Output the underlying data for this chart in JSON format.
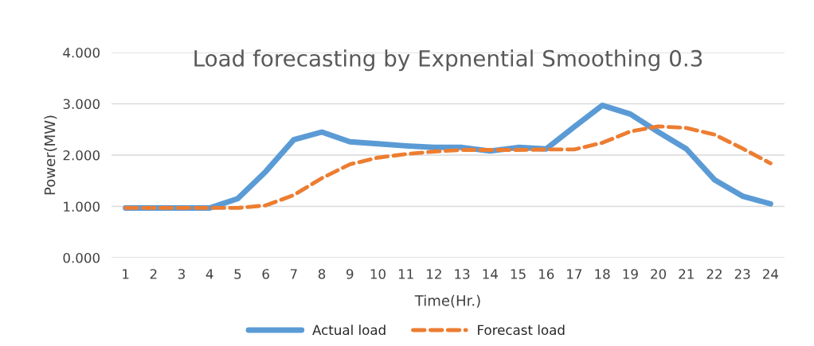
{
  "chart_data": {
    "type": "line",
    "title": "Load forecasting by Expnential Smoothing 0.3",
    "xlabel": "Time(Hr.)",
    "ylabel": "Power(MW)",
    "categories": [
      "1",
      "2",
      "3",
      "4",
      "5",
      "6",
      "7",
      "8",
      "9",
      "10",
      "11",
      "12",
      "13",
      "14",
      "15",
      "16",
      "17",
      "18",
      "19",
      "20",
      "21",
      "22",
      "23",
      "24"
    ],
    "series": [
      {
        "name": "Actual load",
        "color": "#5b9bd5",
        "line_style": "solid",
        "values": [
          0.97,
          0.97,
          0.97,
          0.97,
          1.15,
          1.68,
          2.3,
          2.45,
          2.26,
          2.22,
          2.18,
          2.15,
          2.15,
          2.08,
          2.15,
          2.12,
          2.55,
          2.97,
          2.8,
          2.45,
          2.12,
          1.52,
          1.2,
          1.05
        ]
      },
      {
        "name": "Forecast load",
        "color": "#ed7d31",
        "line_style": "dashed",
        "values": [
          0.97,
          0.97,
          0.97,
          0.97,
          0.97,
          1.02,
          1.22,
          1.55,
          1.82,
          1.95,
          2.02,
          2.07,
          2.1,
          2.1,
          2.1,
          2.11,
          2.11,
          2.24,
          2.46,
          2.56,
          2.53,
          2.4,
          2.13,
          1.84
        ]
      }
    ],
    "ylim": [
      0,
      4
    ],
    "yticks": [
      {
        "value": 0,
        "label": "0.000"
      },
      {
        "value": 1,
        "label": "1.000"
      },
      {
        "value": 2,
        "label": "2.000"
      },
      {
        "value": 3,
        "label": "3.000"
      },
      {
        "value": 4,
        "label": "4.000"
      }
    ],
    "grid": "y",
    "legend": "bottom",
    "marker": "none"
  }
}
